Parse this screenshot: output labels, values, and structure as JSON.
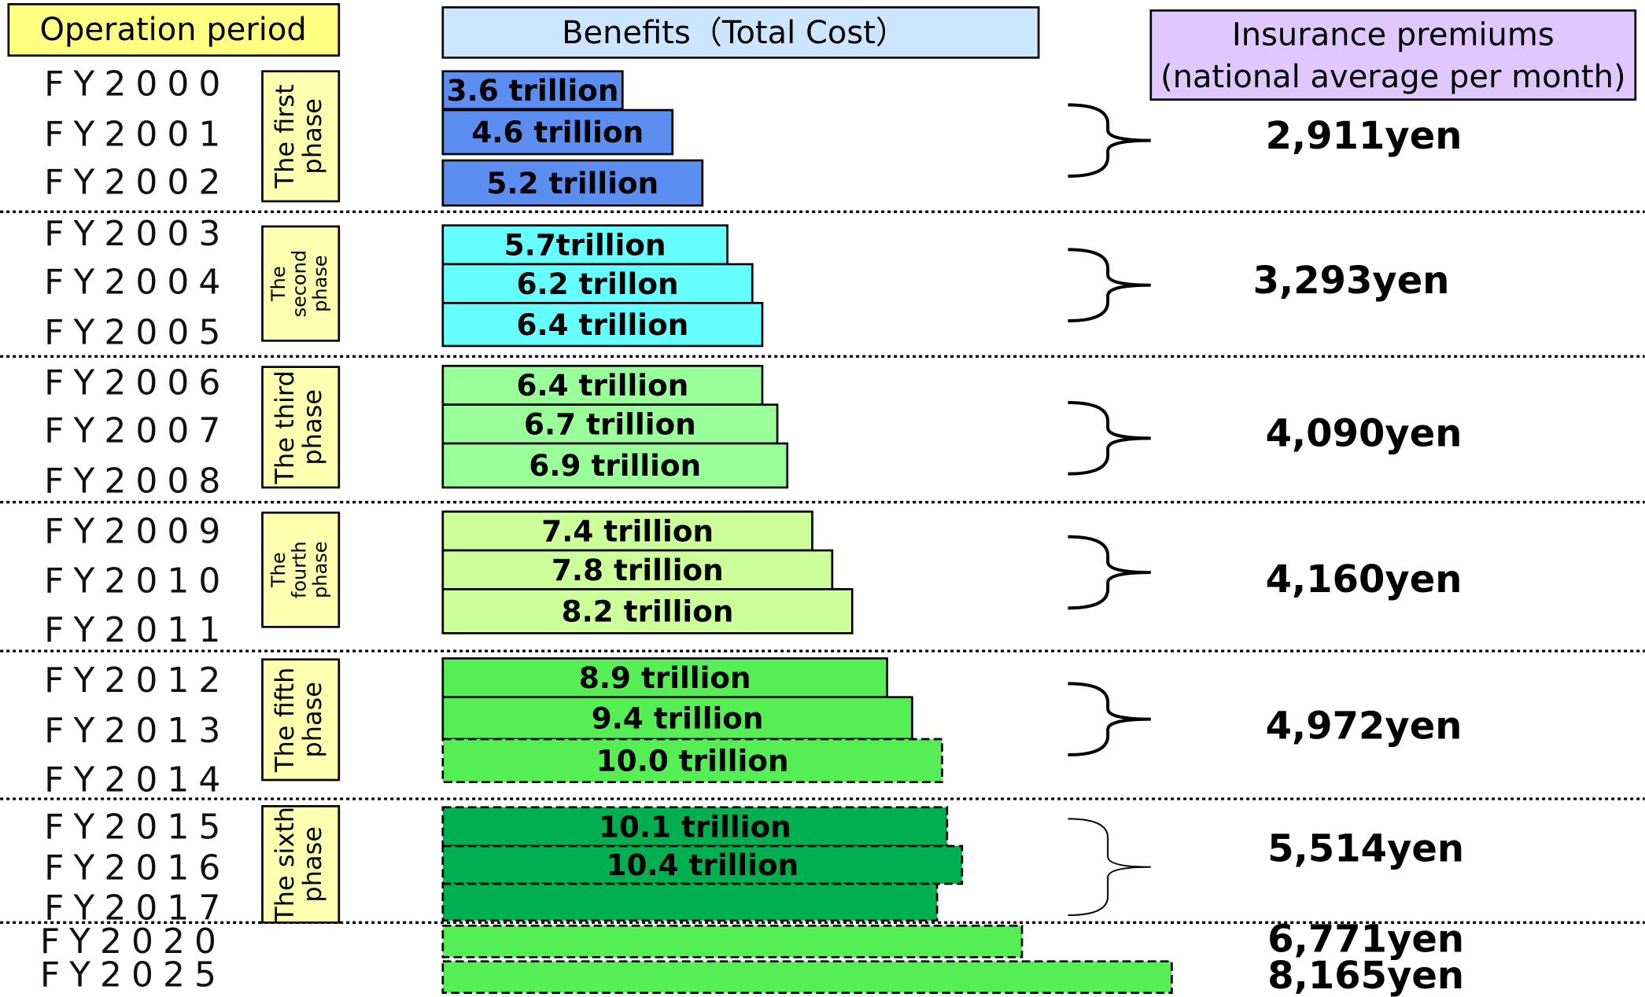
{
  "headers": {
    "period": "Operation period",
    "benefits": "Benefits（Total Cost）",
    "premiums": [
      "Insurance premiums",
      "(national average per month)"
    ]
  },
  "phases": [
    {
      "label": [
        "The first",
        "phase"
      ],
      "color": "#5b8ef0",
      "premium": "2,911yen",
      "rows": [
        {
          "year": "FY2000",
          "value": 3.6,
          "value_label": "3.6 trillion"
        },
        {
          "year": "FY2001",
          "value": 4.6,
          "value_label": "4.6 trillion"
        },
        {
          "year": "FY2002",
          "value": 5.2,
          "value_label": "5.2 trillion"
        }
      ]
    },
    {
      "label": [
        "The",
        "second",
        "phase"
      ],
      "color": "#66ffff",
      "premium": "3,293yen",
      "rows": [
        {
          "year": "FY2003",
          "value": 5.7,
          "value_label": "5.7trillion"
        },
        {
          "year": "FY2004",
          "value": 6.2,
          "value_label": "6.2 trillon"
        },
        {
          "year": "FY2005",
          "value": 6.4,
          "value_label": "6.4 trillion"
        }
      ]
    },
    {
      "label": [
        "The third",
        "phase"
      ],
      "color": "#99ff99",
      "premium": "4,090yen",
      "rows": [
        {
          "year": "FY2006",
          "value": 6.4,
          "value_label": "6.4 trillion"
        },
        {
          "year": "FY2007",
          "value": 6.7,
          "value_label": "6.7 trillion"
        },
        {
          "year": "FY2008",
          "value": 6.9,
          "value_label": "6.9 trillion"
        }
      ]
    },
    {
      "label": [
        "The",
        "fourth",
        "phase"
      ],
      "color": "#ccff99",
      "premium": "4,160yen",
      "rows": [
        {
          "year": "FY2009",
          "value": 7.4,
          "value_label": "7.4 trillion"
        },
        {
          "year": "FY2010",
          "value": 7.8,
          "value_label": "7.8 trillion"
        },
        {
          "year": "FY2011",
          "value": 8.2,
          "value_label": "8.2 trillion"
        }
      ]
    },
    {
      "label": [
        "The fifth",
        "phase"
      ],
      "color": "#55ee55",
      "premium": "4,972yen",
      "rows": [
        {
          "year": "FY2012",
          "value": 8.9,
          "value_label": "8.9 trillion"
        },
        {
          "year": "FY2013",
          "value": 9.4,
          "value_label": "9.4 trillion"
        },
        {
          "year": "FY2014",
          "value": 10.0,
          "value_label": "10.0 trillion",
          "dashed": true
        }
      ]
    },
    {
      "label": [
        "The sixth",
        "phase"
      ],
      "color": "#00b050",
      "premium": "5,514yen",
      "rows": [
        {
          "year": "FY2015",
          "value": 10.1,
          "value_label": "10.1 trillion",
          "dashed": true
        },
        {
          "year": "FY2016",
          "value": 10.4,
          "value_label": "10.4 trillion",
          "dashed": true
        },
        {
          "year": "FY2017",
          "value": 9.9,
          "dashed": true
        }
      ]
    }
  ],
  "later": {
    "color": "#55ee55",
    "rows": [
      {
        "year": "FY2020",
        "value": 11.6,
        "premium": "6,771yen",
        "dashed": true
      },
      {
        "year": "FY2025",
        "value": 14.6,
        "premium": "8,165yen",
        "dashed": true
      }
    ]
  }
}
